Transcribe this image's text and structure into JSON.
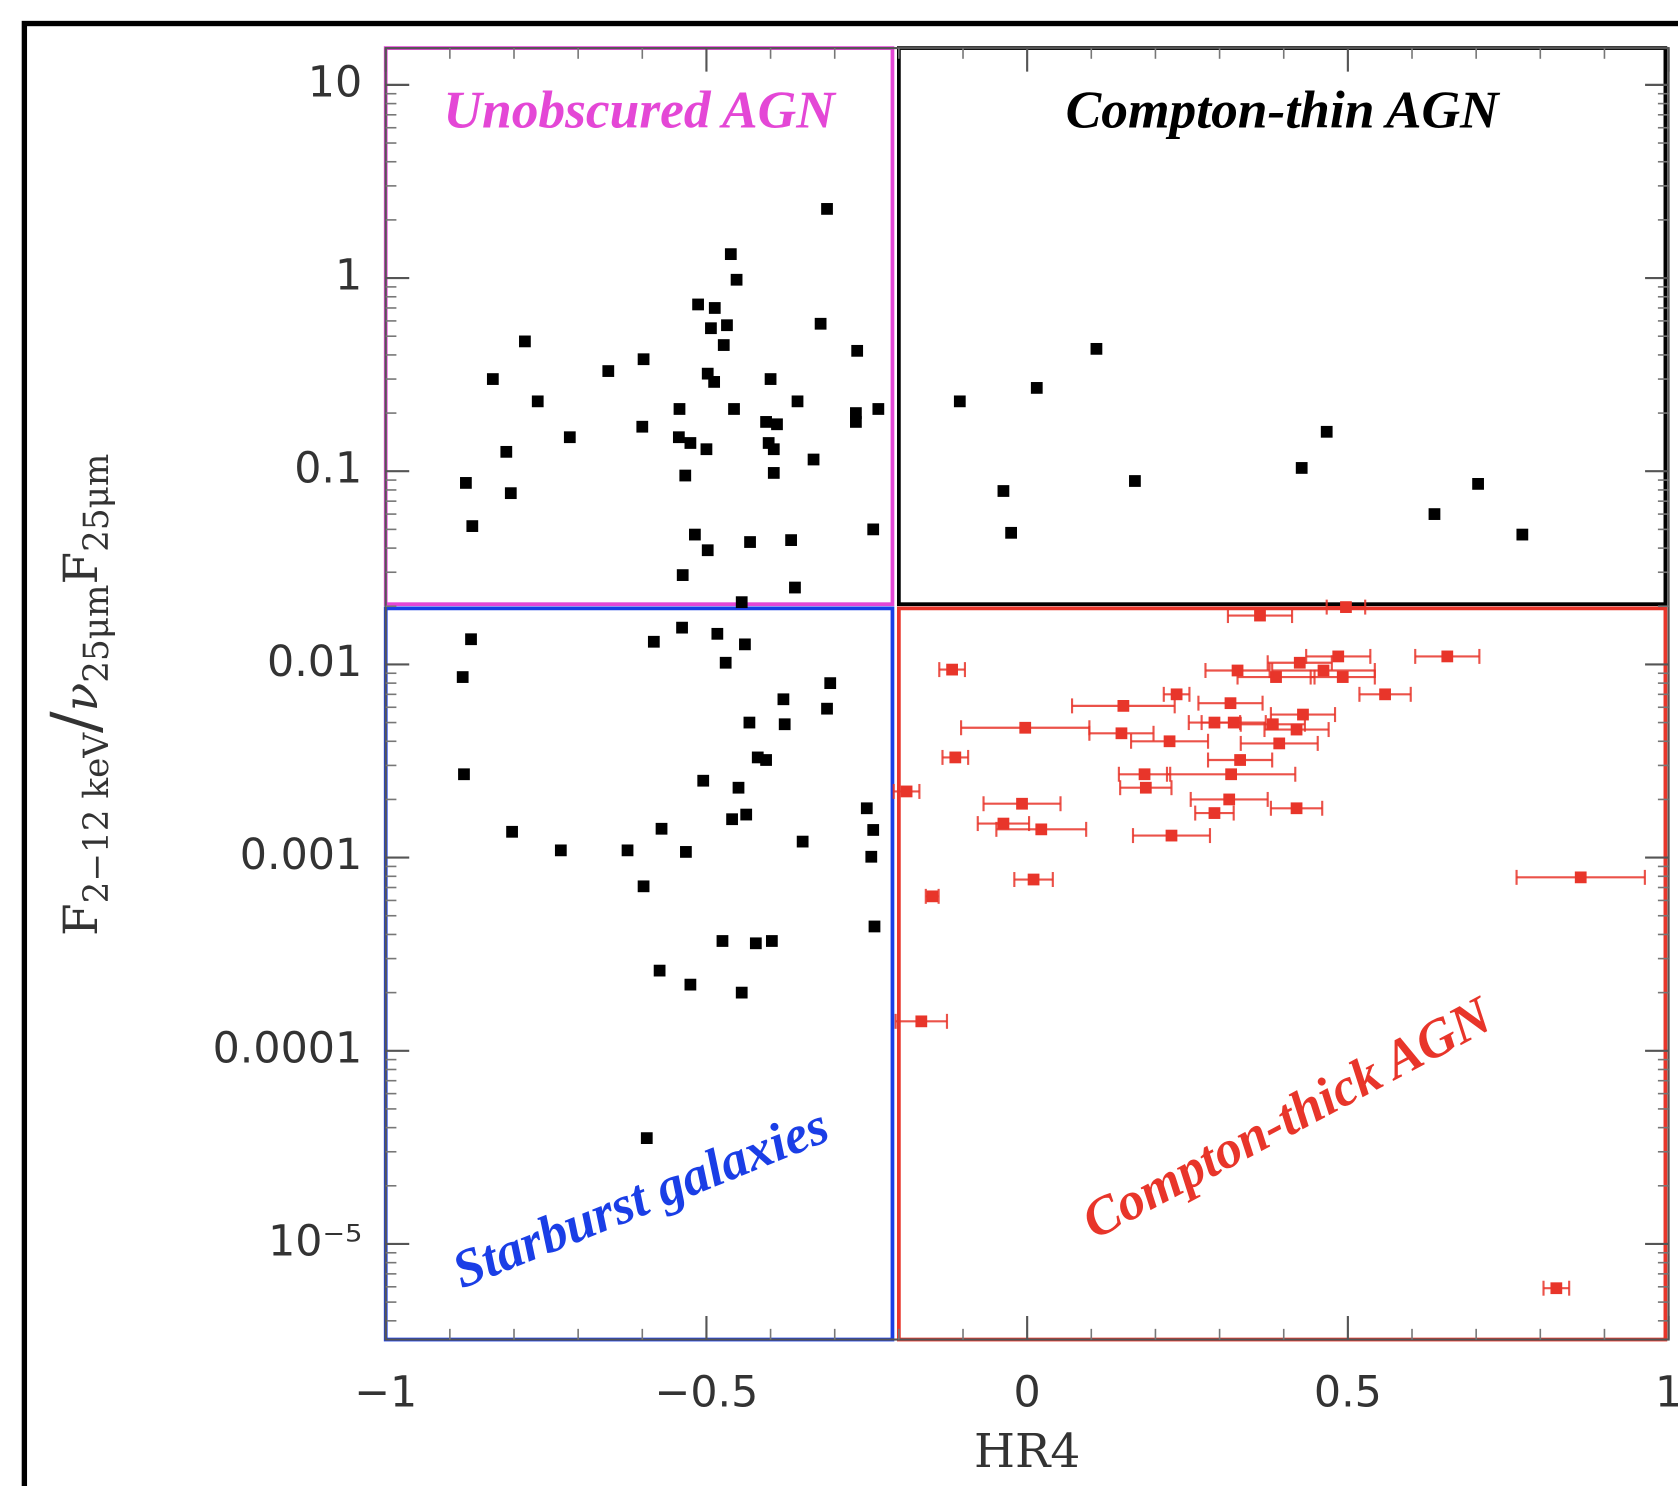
{
  "chart_data": {
    "type": "scatter",
    "log_y": true,
    "xlabel": "HR4",
    "ylabel": [
      "F",
      "2−12 keV",
      "/",
      "ν",
      "25μm",
      "F",
      "25μm"
    ],
    "xlim": [
      -1,
      1
    ],
    "ylim": [
      3.2e-06,
      15.5
    ],
    "xticks": [
      {
        "value": -1,
        "label": "−1"
      },
      {
        "value": -0.5,
        "label": "−0.5"
      },
      0,
      0.5,
      1
    ],
    "yticks": [
      {
        "value": 1e-05,
        "label": "10⁻⁵"
      },
      0.0001,
      0.001,
      0.01,
      0.1,
      1,
      10
    ],
    "regions": [
      {
        "label": "Unobscured AGN",
        "color": "#e447d6",
        "x": [
          -1,
          -0.21
        ],
        "y": [
          0.0205,
          15.5
        ]
      },
      {
        "label": "Compton-thin AGN",
        "color": "#000000",
        "x": [
          -0.2,
          0.995
        ],
        "y": [
          0.0205,
          15.5
        ]
      },
      {
        "label": "Starburst galaxies",
        "color": "#1a3ee6",
        "x": [
          -1,
          -0.21
        ],
        "y": [
          3.2e-06,
          0.0195
        ]
      },
      {
        "label": "Compton-thick AGN",
        "color": "#e8352a",
        "x": [
          -0.2,
          0.995
        ],
        "y": [
          3.2e-06,
          0.0195
        ]
      }
    ],
    "series": [
      {
        "color": "#000000",
        "x": [
          -0.312,
          -0.462,
          -0.453,
          -0.513,
          -0.487,
          -0.468,
          -0.493,
          -0.322,
          -0.783,
          -0.598,
          -0.653,
          -0.833,
          -0.498,
          -0.488,
          -0.473,
          -0.4,
          -0.265,
          -0.763,
          -0.358,
          -0.457,
          -0.542,
          -0.232,
          -0.267,
          -0.267,
          -0.407,
          -0.39,
          -0.6,
          -0.713,
          -0.543,
          -0.525,
          -0.5,
          -0.403,
          -0.395,
          -0.812,
          -0.333,
          -0.533,
          -0.395,
          -0.875,
          -0.805,
          -0.865,
          -0.518,
          -0.498,
          -0.432,
          -0.368,
          -0.24,
          -0.537,
          -0.362,
          -0.445,
          0.108,
          0.015,
          -0.105,
          0.467,
          0.428,
          0.168,
          -0.037,
          0.703,
          -0.025,
          0.635,
          0.772,
          -0.867,
          -0.88,
          -0.538,
          -0.582,
          -0.483,
          -0.44,
          -0.47,
          -0.307,
          -0.38,
          -0.312,
          -0.433,
          -0.378,
          -0.42,
          -0.407,
          -0.878,
          -0.505,
          -0.45,
          -0.25,
          -0.46,
          -0.438,
          -0.57,
          -0.803,
          -0.24,
          -0.35,
          -0.727,
          -0.623,
          -0.532,
          -0.243,
          -0.598,
          -0.238,
          -0.475,
          -0.423,
          -0.398,
          -0.573,
          -0.525,
          -0.445,
          -0.593
        ],
        "values": [
          2.28,
          1.33,
          0.98,
          0.73,
          0.7,
          0.57,
          0.55,
          0.58,
          0.47,
          0.38,
          0.33,
          0.3,
          0.32,
          0.29,
          0.45,
          0.3,
          0.42,
          0.23,
          0.23,
          0.21,
          0.21,
          0.21,
          0.2,
          0.18,
          0.18,
          0.175,
          0.17,
          0.15,
          0.15,
          0.14,
          0.13,
          0.14,
          0.13,
          0.126,
          0.115,
          0.095,
          0.098,
          0.087,
          0.077,
          0.052,
          0.047,
          0.039,
          0.043,
          0.044,
          0.05,
          0.029,
          0.025,
          0.021,
          0.43,
          0.27,
          0.23,
          0.16,
          0.104,
          0.089,
          0.079,
          0.086,
          0.048,
          0.06,
          0.047,
          0.0135,
          0.0086,
          0.0155,
          0.0131,
          0.0144,
          0.0127,
          0.0102,
          0.008,
          0.0066,
          0.0059,
          0.005,
          0.0049,
          0.0033,
          0.0032,
          0.0027,
          0.0025,
          0.0023,
          0.0018,
          0.00158,
          0.00167,
          0.00141,
          0.00136,
          0.00139,
          0.00121,
          0.00109,
          0.00109,
          0.00107,
          0.00101,
          0.00071,
          0.00044,
          0.00037,
          0.00036,
          0.00037,
          0.00026,
          0.00022,
          0.0002,
          3.53e-05
        ]
      },
      {
        "color": "#e8352a",
        "x": [
          0.363,
          0.497,
          -0.117,
          0.485,
          0.655,
          0.425,
          0.328,
          0.388,
          0.492,
          0.462,
          0.558,
          0.233,
          0.15,
          0.317,
          0.43,
          0.292,
          0.322,
          0.383,
          0.42,
          -0.003,
          0.393,
          0.147,
          0.222,
          0.332,
          -0.112,
          0.183,
          0.318,
          0.185,
          -0.188,
          0.315,
          -0.008,
          0.42,
          0.292,
          -0.037,
          0.022,
          0.225,
          0.863,
          0.01,
          -0.148,
          -0.165,
          0.825
        ],
        "values": [
          0.0179,
          0.0198,
          0.0094,
          0.011,
          0.011,
          0.0102,
          0.0093,
          0.0086,
          0.0086,
          0.0093,
          0.007,
          0.007,
          0.0061,
          0.0063,
          0.0055,
          0.005,
          0.005,
          0.0049,
          0.0046,
          0.0047,
          0.0039,
          0.0044,
          0.004,
          0.0032,
          0.0033,
          0.0027,
          0.0027,
          0.0023,
          0.0022,
          0.002,
          0.0019,
          0.0018,
          0.0017,
          0.0015,
          0.0014,
          0.0013,
          0.00079,
          0.00077,
          0.00063,
          0.000142,
          5.9e-06
        ],
        "xerr": [
          0.05,
          0.03,
          0.02,
          0.05,
          0.05,
          0.05,
          0.05,
          0.06,
          0.05,
          0.08,
          0.04,
          0.02,
          0.08,
          0.05,
          0.05,
          0.04,
          0.05,
          0.05,
          0.05,
          0.1,
          0.06,
          0.05,
          0.06,
          0.05,
          0.02,
          0.04,
          0.1,
          0.04,
          0.02,
          0.06,
          0.06,
          0.04,
          0.03,
          0.04,
          0.07,
          0.06,
          0.1,
          0.03,
          0.01,
          0.04,
          0.02
        ]
      }
    ]
  }
}
